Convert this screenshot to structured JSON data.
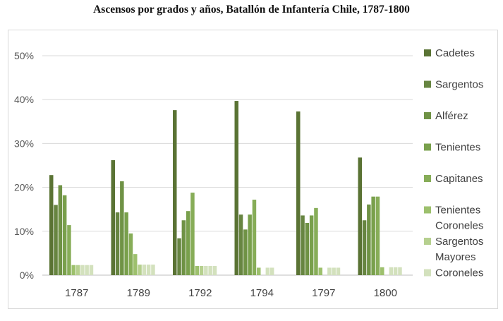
{
  "chart_data": {
    "type": "bar",
    "title": "Ascensos por grados y años, Batallón de Infantería Chile, 1787-1800",
    "xlabel": "",
    "ylabel": "",
    "ylim": [
      0,
      0.5
    ],
    "y_ticks": [
      "0%",
      "10%",
      "20%",
      "30%",
      "40%",
      "50%"
    ],
    "grid": true,
    "legend_position": "right",
    "categories": [
      "1787",
      "1789",
      "1792",
      "1794",
      "1797",
      "1800"
    ],
    "series": [
      {
        "name": "Cadetes",
        "color": "#5a7334",
        "values": [
          0.228,
          0.262,
          0.376,
          0.397,
          0.373,
          0.268
        ]
      },
      {
        "name": "Sargentos",
        "color": "#678541",
        "values": [
          0.16,
          0.143,
          0.084,
          0.138,
          0.136,
          0.125
        ]
      },
      {
        "name": "Alférez",
        "color": "#6f9245",
        "values": [
          0.205,
          0.214,
          0.125,
          0.104,
          0.119,
          0.161
        ]
      },
      {
        "name": "Tenientes",
        "color": "#79a04c",
        "values": [
          0.182,
          0.143,
          0.146,
          0.138,
          0.136,
          0.179
        ]
      },
      {
        "name": "Capitanes",
        "color": "#87ad58",
        "values": [
          0.114,
          0.095,
          0.188,
          0.172,
          0.153,
          0.179
        ]
      },
      {
        "name": "Tenientes Coroneles",
        "color": "#9dc06d",
        "values": [
          0.023,
          0.048,
          0.021,
          0.017,
          0.017,
          0.018
        ]
      },
      {
        "name": "Sargentos Mayores",
        "color": "#b6d08f",
        "values": [
          0.023,
          0.024,
          0.021,
          0.0,
          0.0,
          0.0
        ]
      },
      {
        "name": "Coroneles",
        "color": "#d3e1bd",
        "values": [
          0.023,
          0.024,
          0.021,
          0.017,
          0.017,
          0.018
        ]
      }
    ],
    "extra_series": [
      {
        "color": "#d3e1bd",
        "values": [
          0.023,
          0.024,
          0.021,
          0.017,
          0.017,
          0.018
        ]
      },
      {
        "color": "#d3e1bd",
        "values": [
          0.023,
          0.024,
          0.021,
          0.0,
          0.017,
          0.018
        ]
      }
    ]
  }
}
